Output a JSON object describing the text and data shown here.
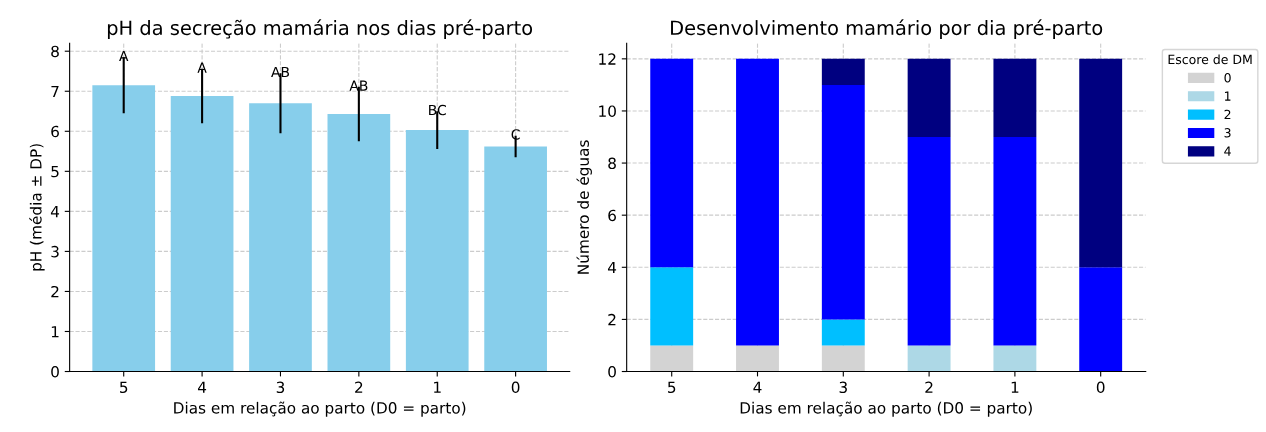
{
  "chart_data": [
    {
      "type": "bar",
      "title": "pH da secreção mamária nos dias pré-parto",
      "xlabel": "Dias em relação ao parto (D0 = parto)",
      "ylabel": "pH (média ± DP)",
      "categories": [
        "5",
        "4",
        "3",
        "2",
        "1",
        "0"
      ],
      "values": [
        7.15,
        6.88,
        6.7,
        6.43,
        6.03,
        5.62
      ],
      "errors": [
        0.7,
        0.68,
        0.75,
        0.68,
        0.47,
        0.27
      ],
      "color": "#87ceeb",
      "ylim": [
        0,
        8.2
      ],
      "yticks": [
        0,
        1,
        2,
        3,
        4,
        5,
        6,
        7,
        8
      ],
      "grid": true,
      "annotations": [
        {
          "text": "A",
          "x": "5",
          "y": 7.85
        },
        {
          "text": "A",
          "x": "4",
          "y": 7.56
        },
        {
          "text": "AB",
          "x": "3",
          "y": 7.45
        },
        {
          "text": "AB",
          "x": "2",
          "y": 7.11
        },
        {
          "text": "BC",
          "x": "1",
          "y": 6.5
        },
        {
          "text": "C",
          "x": "0",
          "y": 5.89
        }
      ]
    },
    {
      "type": "bar",
      "stacked": true,
      "title": "Desenvolvimento mamário por dia pré-parto",
      "xlabel": "Dias em relação ao parto (D0 = parto)",
      "ylabel": "Número de éguas",
      "legend_title": "Escore de DM",
      "legend": "right",
      "categories": [
        "5",
        "4",
        "3",
        "2",
        "1",
        "0"
      ],
      "ylim": [
        0,
        12.6
      ],
      "yticks": [
        0,
        2,
        4,
        6,
        8,
        10,
        12
      ],
      "grid": true,
      "series": [
        {
          "name": "0",
          "color": "#d3d3d3",
          "values": [
            1,
            1,
            1,
            0,
            0,
            0
          ]
        },
        {
          "name": "1",
          "color": "#add8e6",
          "values": [
            0,
            0,
            0,
            1,
            1,
            0
          ]
        },
        {
          "name": "2",
          "color": "#00bfff",
          "values": [
            3,
            0,
            1,
            0,
            0,
            0
          ]
        },
        {
          "name": "3",
          "color": "#0000ff",
          "values": [
            8,
            11,
            9,
            8,
            8,
            4
          ]
        },
        {
          "name": "4",
          "color": "#000080",
          "values": [
            0,
            0,
            1,
            3,
            3,
            8
          ]
        }
      ]
    }
  ]
}
